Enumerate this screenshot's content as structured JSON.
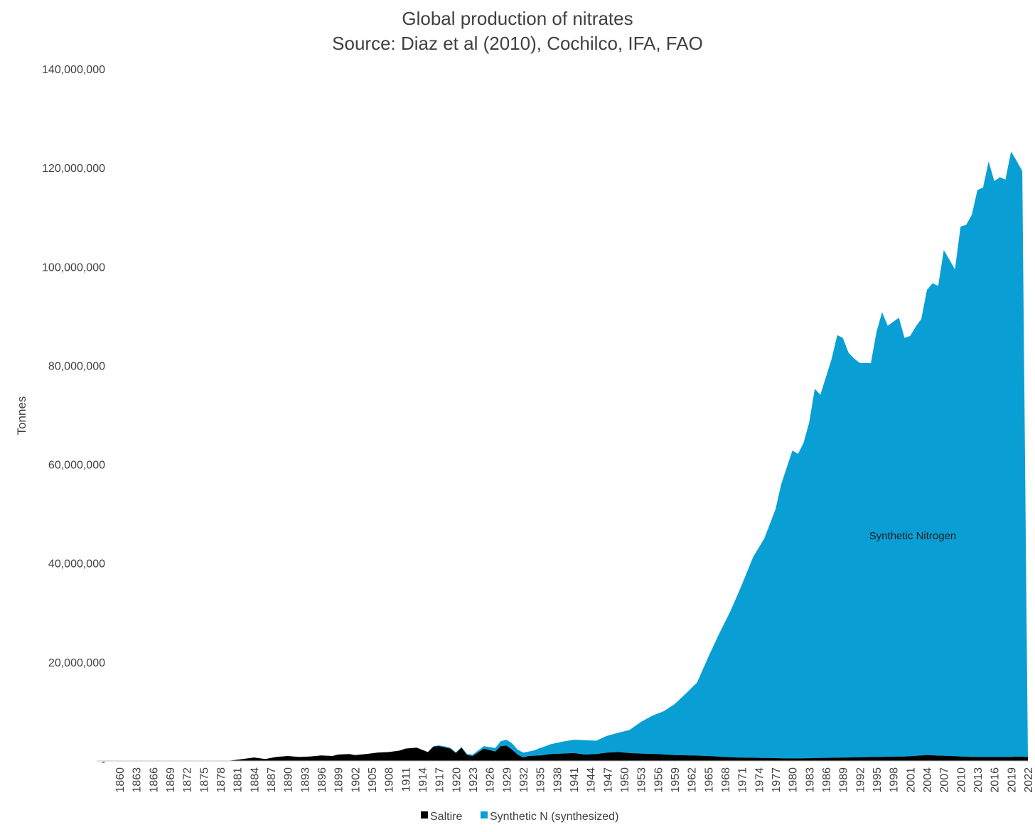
{
  "chart_data": {
    "type": "area",
    "stacked": true,
    "title": "Global production of nitrates",
    "subtitle": "Source: Diaz et al (2010), Cochilco, IFA, FAO",
    "xlabel": "",
    "ylabel": "Tonnes",
    "ylim": [
      0,
      140000000
    ],
    "yticks": [
      0,
      20000000,
      40000000,
      60000000,
      80000000,
      100000000,
      120000000,
      140000000
    ],
    "ytick_labels": [
      "-",
      "20,000,000",
      "40,000,000",
      "60,000,000",
      "80,000,000",
      "100,000,000",
      "120,000,000",
      "140,000,000"
    ],
    "xlim": [
      1860,
      2022
    ],
    "xtick_step": 3,
    "grid": false,
    "legend_position": "bottom",
    "annotation": "Synthetic Nitrogen",
    "colors": {
      "saltire": "#000000",
      "synthetic": "#0a9fd4",
      "axis": "#bfbfbf",
      "text": "#404040"
    },
    "series": [
      {
        "name": "Saltire",
        "points": [
          [
            1860,
            0
          ],
          [
            1879,
            0
          ],
          [
            1880,
            100000
          ],
          [
            1882,
            400000
          ],
          [
            1884,
            700000
          ],
          [
            1886,
            400000
          ],
          [
            1888,
            800000
          ],
          [
            1890,
            1000000
          ],
          [
            1892,
            800000
          ],
          [
            1894,
            900000
          ],
          [
            1896,
            1100000
          ],
          [
            1898,
            1000000
          ],
          [
            1899,
            1300000
          ],
          [
            1901,
            1400000
          ],
          [
            1902,
            1200000
          ],
          [
            1904,
            1400000
          ],
          [
            1906,
            1700000
          ],
          [
            1908,
            1800000
          ],
          [
            1910,
            2100000
          ],
          [
            1911,
            2500000
          ],
          [
            1913,
            2700000
          ],
          [
            1915,
            1800000
          ],
          [
            1916,
            2900000
          ],
          [
            1917,
            3000000
          ],
          [
            1919,
            2500000
          ],
          [
            1920,
            1600000
          ],
          [
            1921,
            2700000
          ],
          [
            1922,
            1200000
          ],
          [
            1923,
            1000000
          ],
          [
            1925,
            2500000
          ],
          [
            1927,
            1900000
          ],
          [
            1928,
            3000000
          ],
          [
            1929,
            3100000
          ],
          [
            1930,
            2300000
          ],
          [
            1931,
            1300000
          ],
          [
            1932,
            700000
          ],
          [
            1933,
            1000000
          ],
          [
            1935,
            1100000
          ],
          [
            1937,
            1400000
          ],
          [
            1939,
            1500000
          ],
          [
            1941,
            1600000
          ],
          [
            1943,
            1300000
          ],
          [
            1945,
            1400000
          ],
          [
            1947,
            1700000
          ],
          [
            1949,
            1800000
          ],
          [
            1951,
            1600000
          ],
          [
            1953,
            1500000
          ],
          [
            1956,
            1400000
          ],
          [
            1959,
            1200000
          ],
          [
            1962,
            1100000
          ],
          [
            1965,
            1000000
          ],
          [
            1968,
            800000
          ],
          [
            1970,
            700000
          ],
          [
            1975,
            600000
          ],
          [
            1980,
            500000
          ],
          [
            1985,
            600000
          ],
          [
            1990,
            700000
          ],
          [
            1995,
            800000
          ],
          [
            2000,
            900000
          ],
          [
            2004,
            1200000
          ],
          [
            2008,
            1000000
          ],
          [
            2012,
            800000
          ],
          [
            2016,
            800000
          ],
          [
            2019,
            800000
          ],
          [
            2020,
            900000
          ],
          [
            2022,
            800000
          ]
        ]
      },
      {
        "name": "Synthetic N (synthesized)",
        "points": [
          [
            1860,
            0
          ],
          [
            1915,
            0
          ],
          [
            1916,
            100000
          ],
          [
            1918,
            200000
          ],
          [
            1921,
            100000
          ],
          [
            1923,
            300000
          ],
          [
            1925,
            500000
          ],
          [
            1927,
            700000
          ],
          [
            1928,
            1000000
          ],
          [
            1929,
            1200000
          ],
          [
            1930,
            1300000
          ],
          [
            1931,
            1000000
          ],
          [
            1932,
            1000000
          ],
          [
            1933,
            900000
          ],
          [
            1934,
            1100000
          ],
          [
            1935,
            1500000
          ],
          [
            1937,
            2000000
          ],
          [
            1939,
            2400000
          ],
          [
            1941,
            2700000
          ],
          [
            1943,
            2900000
          ],
          [
            1945,
            2700000
          ],
          [
            1947,
            3400000
          ],
          [
            1949,
            3900000
          ],
          [
            1951,
            4700000
          ],
          [
            1953,
            6400000
          ],
          [
            1955,
            7700000
          ],
          [
            1957,
            8700000
          ],
          [
            1959,
            10300000
          ],
          [
            1961,
            12500000
          ],
          [
            1963,
            14800000
          ],
          [
            1965,
            20000000
          ],
          [
            1967,
            25000000
          ],
          [
            1969,
            29700000
          ],
          [
            1971,
            35000000
          ],
          [
            1973,
            40600000
          ],
          [
            1975,
            44400000
          ],
          [
            1976,
            47400000
          ],
          [
            1977,
            50400000
          ],
          [
            1978,
            55400000
          ],
          [
            1980,
            62300000
          ],
          [
            1981,
            61600000
          ],
          [
            1982,
            63800000
          ],
          [
            1983,
            67900000
          ],
          [
            1984,
            74700000
          ],
          [
            1985,
            73500000
          ],
          [
            1987,
            80700000
          ],
          [
            1988,
            85500000
          ],
          [
            1989,
            84900000
          ],
          [
            1990,
            81900000
          ],
          [
            1991,
            80700000
          ],
          [
            1992,
            79800000
          ],
          [
            1994,
            79700000
          ],
          [
            1995,
            86000000
          ],
          [
            1996,
            90000000
          ],
          [
            1997,
            87200000
          ],
          [
            1999,
            88800000
          ],
          [
            2000,
            84700000
          ],
          [
            2001,
            85000000
          ],
          [
            2002,
            86800000
          ],
          [
            2003,
            88300000
          ],
          [
            2004,
            94100000
          ],
          [
            2005,
            95500000
          ],
          [
            2006,
            95000000
          ],
          [
            2007,
            102300000
          ],
          [
            2009,
            98500000
          ],
          [
            2010,
            107200000
          ],
          [
            2011,
            107600000
          ],
          [
            2012,
            109700000
          ],
          [
            2013,
            114700000
          ],
          [
            2014,
            115200000
          ],
          [
            2015,
            120500000
          ],
          [
            2016,
            116500000
          ],
          [
            2017,
            117300000
          ],
          [
            2018,
            116800000
          ],
          [
            2019,
            122500000
          ],
          [
            2021,
            118500000
          ],
          [
            2022,
            0
          ]
        ]
      }
    ]
  }
}
